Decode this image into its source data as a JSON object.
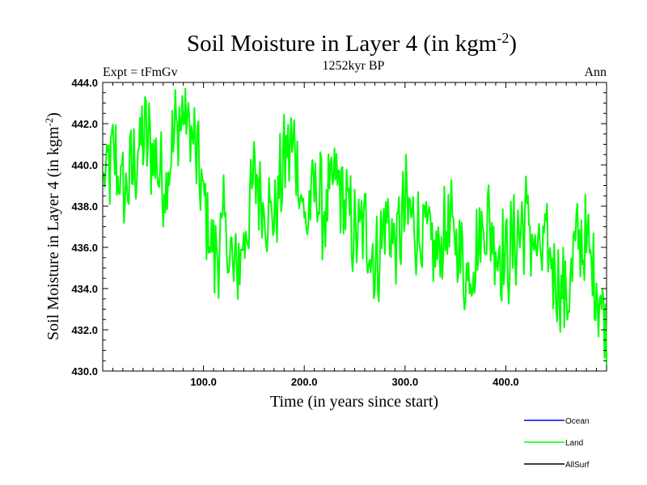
{
  "chart_data": {
    "type": "line",
    "title": "Soil Moisture in Layer 4 (in kgm",
    "title_sup": "-2",
    "title_close": ")",
    "subtitle_left": "Expt = tFmGv",
    "subtitle_center": "1252kyr BP",
    "subtitle_right": "Ann",
    "xlabel": "Time (in years since start)",
    "ylabel": "Soil Moisture in Layer 4 (in kgm",
    "ylabel_sup": "-2",
    "ylabel_close": ")",
    "xlim": [
      0,
      500
    ],
    "ylim": [
      430.0,
      444.0
    ],
    "xticks": [
      100,
      200,
      300,
      400
    ],
    "xtick_labels": [
      "100.0",
      "200.0",
      "300.0",
      "400.0"
    ],
    "yticks": [
      430,
      432,
      434,
      436,
      438,
      440,
      442,
      444
    ],
    "ytick_labels": [
      "430.0",
      "432.0",
      "434.0",
      "436.0",
      "438.0",
      "440.0",
      "442.0",
      "444.0"
    ],
    "legend": [
      {
        "name": "Ocean",
        "color": "#0000ff"
      },
      {
        "name": "Land",
        "color": "#00ff00"
      },
      {
        "name": "AllSurf",
        "color": "#000000"
      }
    ],
    "series": [
      {
        "name": "Land",
        "color": "#00ff00",
        "x_start": 1,
        "x_step": 10,
        "values": [
          439.0,
          440.5,
          438.5,
          440.0,
          441.5,
          440.5,
          439.0,
          441.5,
          442.5,
          441.0,
          438.0,
          435.5,
          437.0,
          434.5,
          436.5,
          439.5,
          438.0,
          437.5,
          440.5,
          441.0,
          437.0,
          439.0,
          437.5,
          439.5,
          438.0,
          436.5,
          437.0,
          435.0,
          437.5,
          436.0,
          438.0,
          437.0,
          436.5,
          435.5,
          437.0,
          436.5,
          434.5,
          436.0,
          437.5,
          436.0,
          435.5,
          436.5,
          437.5,
          435.5,
          436.0,
          434.5,
          433.5,
          436.5,
          436.0,
          434.0
        ]
      }
    ]
  }
}
